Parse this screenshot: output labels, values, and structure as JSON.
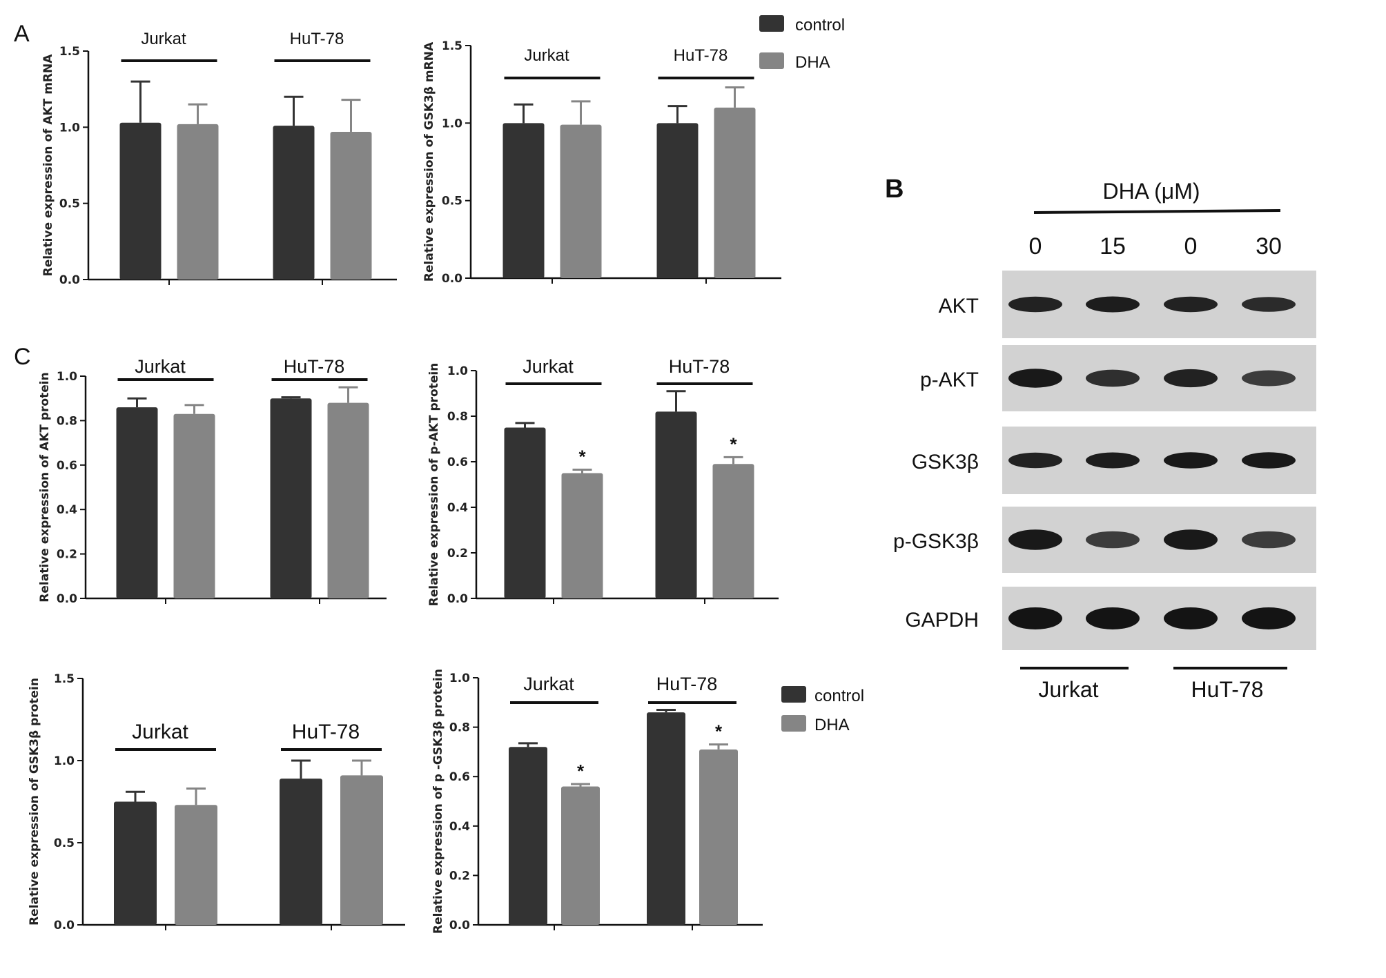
{
  "panel_labels": {
    "a": "A",
    "b": "B",
    "c": "C"
  },
  "colors": {
    "control": "#333333",
    "dha": "#858585",
    "axis": "#111111"
  },
  "legend_top": {
    "control": "control",
    "dha": "DHA"
  },
  "legend_bottom": {
    "control": "control",
    "dha": "DHA"
  },
  "chart_data": [
    {
      "id": "akt-mrna",
      "type": "bar",
      "ylabel": "Relative expression of AKT mRNA",
      "ylim": [
        0,
        1.5
      ],
      "yticks": [
        "0.0",
        "0.5",
        "1.0",
        "1.5"
      ],
      "groups": [
        "Jurkat",
        "HuT-78"
      ],
      "series": [
        {
          "name": "control",
          "values": [
            1.03,
            1.01
          ],
          "errors": [
            0.27,
            0.19
          ]
        },
        {
          "name": "DHA",
          "values": [
            1.02,
            0.97
          ],
          "errors": [
            0.13,
            0.21
          ]
        }
      ],
      "significance": [
        "",
        ""
      ]
    },
    {
      "id": "gsk-mrna",
      "type": "bar",
      "ylabel": "Relative expression of GSK3β  mRNA",
      "ylim": [
        0,
        1.5
      ],
      "yticks": [
        "0.0",
        "0.5",
        "1.0",
        "1.5"
      ],
      "groups": [
        "Jurkat",
        "HuT-78"
      ],
      "series": [
        {
          "name": "control",
          "values": [
            1.0,
            1.0
          ],
          "errors": [
            0.12,
            0.11
          ]
        },
        {
          "name": "DHA",
          "values": [
            0.99,
            1.1
          ],
          "errors": [
            0.15,
            0.13
          ]
        }
      ],
      "significance": [
        "",
        ""
      ]
    },
    {
      "id": "akt-protein",
      "type": "bar",
      "ylabel": "Relative expression of AKT protein",
      "ylim": [
        0,
        1.0
      ],
      "yticks": [
        "0.0",
        "0.2",
        "0.4",
        "0.6",
        "0.8",
        "1.0"
      ],
      "groups": [
        "Jurkat",
        "HuT-78"
      ],
      "series": [
        {
          "name": "control",
          "values": [
            0.86,
            0.9
          ],
          "errors": [
            0.04,
            0.005
          ]
        },
        {
          "name": "DHA",
          "values": [
            0.83,
            0.88
          ],
          "errors": [
            0.04,
            0.07
          ]
        }
      ],
      "significance": [
        "",
        ""
      ]
    },
    {
      "id": "pakt-protein",
      "type": "bar",
      "ylabel": "Relative expression of p-AKT protein",
      "ylim": [
        0,
        1.0
      ],
      "yticks": [
        "0.0",
        "0.2",
        "0.4",
        "0.6",
        "0.8",
        "1.0"
      ],
      "groups": [
        "Jurkat",
        "HuT-78"
      ],
      "series": [
        {
          "name": "control",
          "values": [
            0.75,
            0.82
          ],
          "errors": [
            0.02,
            0.09
          ]
        },
        {
          "name": "DHA",
          "values": [
            0.55,
            0.59
          ],
          "errors": [
            0.015,
            0.03
          ]
        }
      ],
      "significance": [
        "*",
        "*"
      ]
    },
    {
      "id": "gsk-protein",
      "type": "bar",
      "ylabel": "Relative expression of GSK3β protein",
      "ylim": [
        0,
        1.5
      ],
      "yticks": [
        "0.0",
        "0.5",
        "1.0",
        "1.5"
      ],
      "groups": [
        "Jurkat",
        "HuT-78"
      ],
      "series": [
        {
          "name": "control",
          "values": [
            0.75,
            0.89
          ],
          "errors": [
            0.06,
            0.11
          ]
        },
        {
          "name": "DHA",
          "values": [
            0.73,
            0.91
          ],
          "errors": [
            0.1,
            0.09
          ]
        }
      ],
      "significance": [
        "",
        ""
      ]
    },
    {
      "id": "pgsk-protein",
      "type": "bar",
      "ylabel": "Relative expression of p -GSK3β  protein",
      "ylim": [
        0,
        1.0
      ],
      "yticks": [
        "0.0",
        "0.2",
        "0.4",
        "0.6",
        "0.8",
        "1.0"
      ],
      "groups": [
        "Jurkat",
        "HuT-78"
      ],
      "series": [
        {
          "name": "control",
          "values": [
            0.72,
            0.86
          ],
          "errors": [
            0.015,
            0.01
          ]
        },
        {
          "name": "DHA",
          "values": [
            0.56,
            0.71
          ],
          "errors": [
            0.01,
            0.02
          ]
        }
      ],
      "significance": [
        "*",
        "*"
      ]
    }
  ],
  "western_blot": {
    "title": "DHA (μM)",
    "lanes": [
      "0",
      "15",
      "0",
      "30"
    ],
    "rows": [
      {
        "label": "AKT",
        "intensity": [
          0.85,
          0.9,
          0.85,
          0.75
        ]
      },
      {
        "label": "p-AKT",
        "intensity": [
          0.95,
          0.7,
          0.85,
          0.55
        ]
      },
      {
        "label": "GSK3β",
        "intensity": [
          0.85,
          0.9,
          0.95,
          0.95
        ]
      },
      {
        "label": "p-GSK3β",
        "intensity": [
          0.95,
          0.55,
          0.95,
          0.55
        ]
      },
      {
        "label": "GAPDH",
        "intensity": [
          1.0,
          1.0,
          1.0,
          1.0
        ]
      }
    ],
    "groups": [
      "Jurkat",
      "HuT-78"
    ]
  }
}
